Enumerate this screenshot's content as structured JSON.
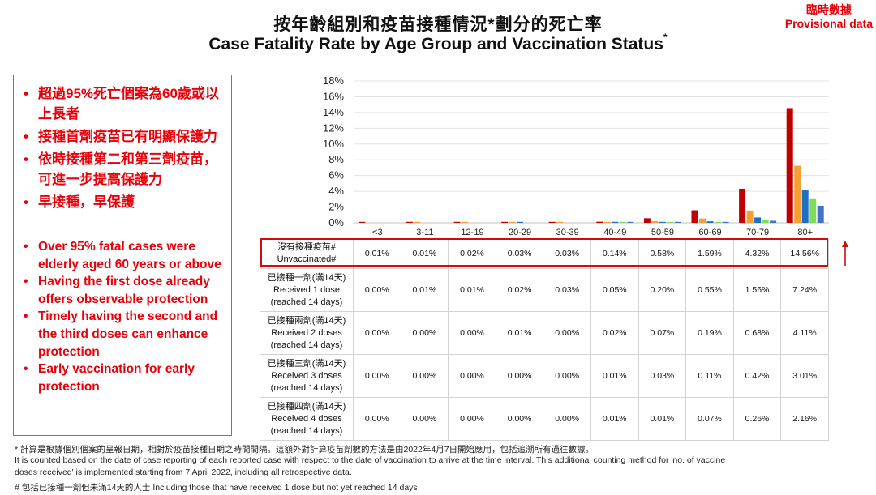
{
  "header": {
    "title_zh": "按年齡組別和疫苗接種情況*劃分的死亡率",
    "title_en": "Case Fatality Rate by Age Group and Vaccination Status",
    "title_en_mark": "*",
    "provisional_zh": "臨時數據",
    "provisional_en": "Provisional data"
  },
  "bullets_zh": [
    "超過95%死亡個案為60歲或以上長者",
    "接種首劑疫苗已有明顯保護力",
    "依時接種第二和第三劑疫苗，可進一步提高保護力",
    "早接種，早保護"
  ],
  "bullets_en": [
    "Over 95% fatal cases were elderly aged 60 years or above",
    "Having the first dose already offers observable protection",
    "Timely having the second and the third doses can enhance protection",
    "Early vaccination for early protection"
  ],
  "chart_data": {
    "type": "bar",
    "categories": [
      "<3",
      "3-11",
      "12-19",
      "20-29",
      "30-39",
      "40-49",
      "50-59",
      "60-69",
      "70-79",
      "80+"
    ],
    "y_ticks": [
      "18%",
      "16%",
      "14%",
      "12%",
      "10%",
      "8%",
      "6%",
      "4%",
      "2%",
      "0%"
    ],
    "ylim": [
      0,
      18
    ],
    "grid": true,
    "legend": "table below chart",
    "series": [
      {
        "name_zh": "沒有接種疫苗#",
        "name": "Unvaccinated#",
        "color": "#c00000",
        "values": [
          0.01,
          0.01,
          0.02,
          0.03,
          0.03,
          0.14,
          0.58,
          1.59,
          4.32,
          14.56
        ],
        "labels": [
          "0.01%",
          "0.01%",
          "0.02%",
          "0.03%",
          "0.03%",
          "0.14%",
          "0.58%",
          "1.59%",
          "4.32%",
          "14.56%"
        ]
      },
      {
        "name_zh": "已接種一劑(滿14天)",
        "name": "Received 1 dose",
        "name_sub": "(reached 14 days)",
        "color": "#f4a032",
        "values": [
          0.0,
          0.01,
          0.01,
          0.02,
          0.03,
          0.05,
          0.2,
          0.55,
          1.56,
          7.24
        ],
        "labels": [
          "0.00%",
          "0.01%",
          "0.01%",
          "0.02%",
          "0.03%",
          "0.05%",
          "0.20%",
          "0.55%",
          "1.56%",
          "7.24%"
        ]
      },
      {
        "name_zh": "已接種兩劑(滿14天)",
        "name": "Received 2 doses",
        "name_sub": "(reached 14 days)",
        "color": "#1f6fc2",
        "values": [
          0.0,
          0.0,
          0.0,
          0.01,
          0.0,
          0.02,
          0.07,
          0.19,
          0.68,
          4.11
        ],
        "labels": [
          "0.00%",
          "0.00%",
          "0.00%",
          "0.01%",
          "0.00%",
          "0.02%",
          "0.07%",
          "0.19%",
          "0.68%",
          "4.11%"
        ]
      },
      {
        "name_zh": "已接種三劑(滿14天)",
        "name": "Received 3 doses",
        "name_sub": "(reached 14 days)",
        "color": "#7fdc5a",
        "values": [
          0.0,
          0.0,
          0.0,
          0.0,
          0.0,
          0.01,
          0.03,
          0.11,
          0.42,
          3.01
        ],
        "labels": [
          "0.00%",
          "0.00%",
          "0.00%",
          "0.00%",
          "0.00%",
          "0.01%",
          "0.03%",
          "0.11%",
          "0.42%",
          "3.01%"
        ]
      },
      {
        "name_zh": "已接種四劑(滿14天)",
        "name": "Received 4 doses",
        "name_sub": "(reached 14 days)",
        "color": "#4472c4",
        "values": [
          0.0,
          0.0,
          0.0,
          0.0,
          0.0,
          0.01,
          0.01,
          0.07,
          0.26,
          2.16
        ],
        "labels": [
          "0.00%",
          "0.00%",
          "0.00%",
          "0.00%",
          "0.00%",
          "0.01%",
          "0.01%",
          "0.07%",
          "0.26%",
          "2.16%"
        ]
      }
    ]
  },
  "footnotes": [
    "* 計算是根據個別個案的呈報日期，相對於疫苗接種日期之時間間隔。這額外對計算疫苗劑數的方法是由2022年4月7日開始應用，包括追溯所有過往數據。",
    "It is counted based on the date of case reporting of each reported case with respect to the date of vaccination to arrive at the time interval. This additional counting method for 'no. of vaccine",
    "doses received' is implemented starting from 7 April 2022, including all retrospective data.",
    "# 包括已接種一劑但未滿14天的人士 Including those that have received 1 dose but not yet reached 14 days"
  ]
}
